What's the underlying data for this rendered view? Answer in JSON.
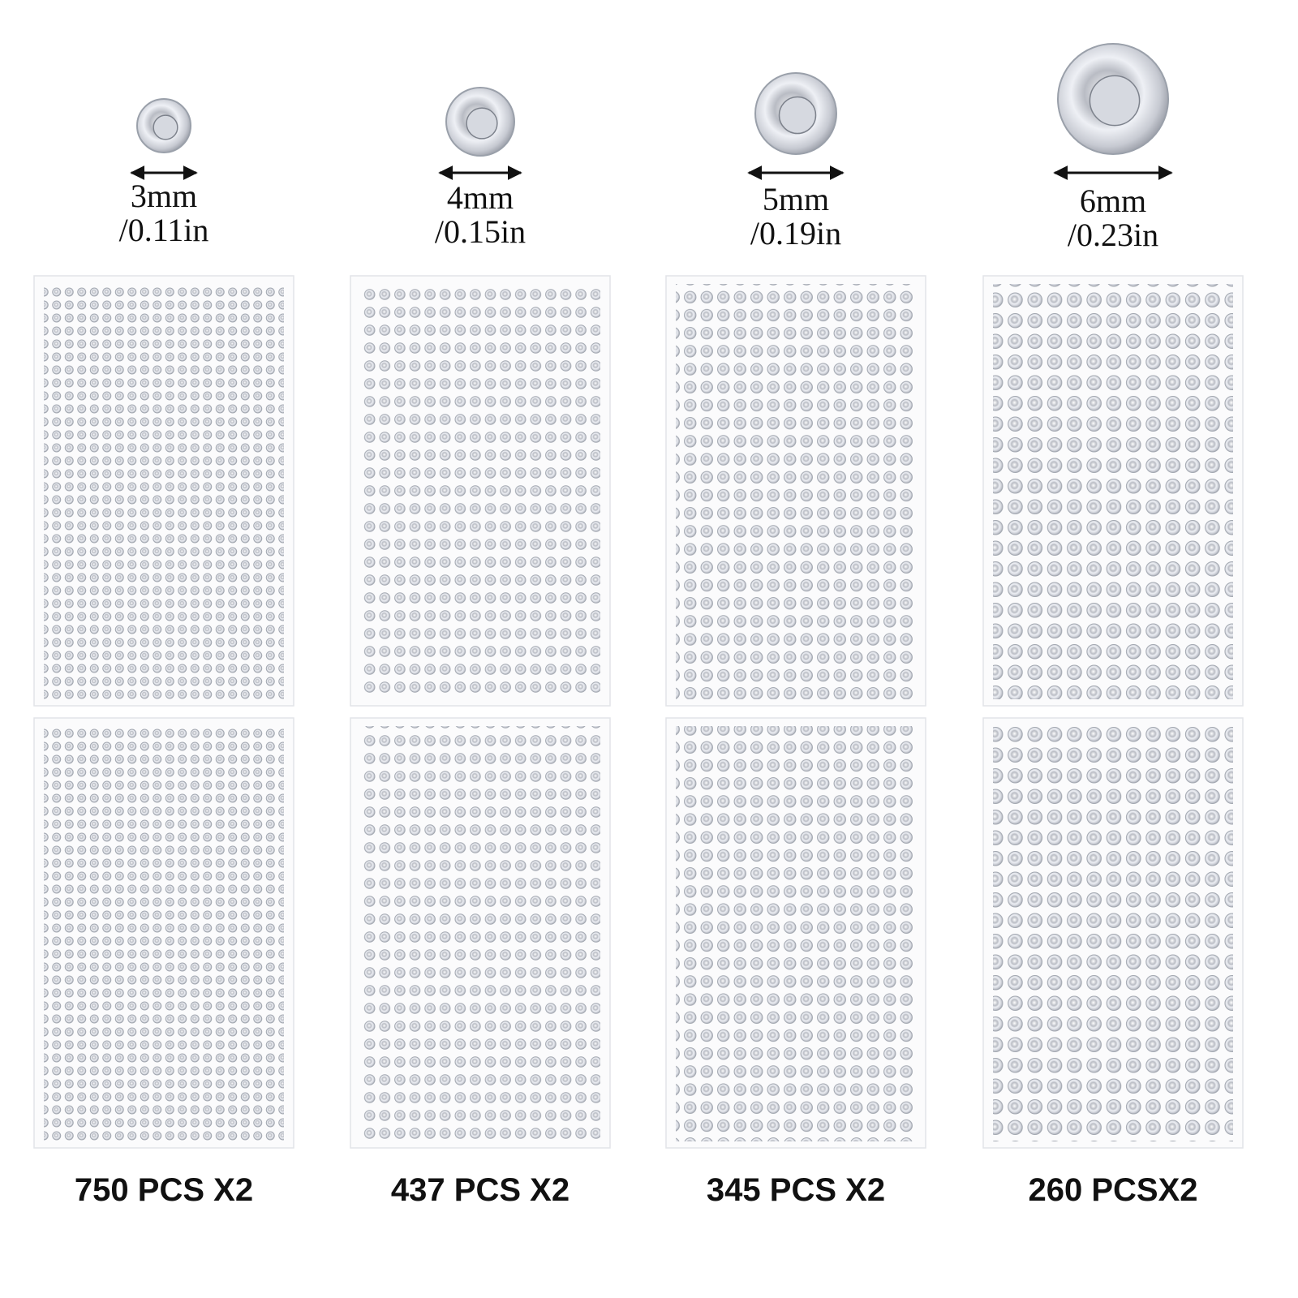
{
  "columns": [
    {
      "size": "3mm",
      "inch": "/0.11in",
      "count": "750 PCS X2"
    },
    {
      "size": "4mm",
      "inch": "/0.15in",
      "count": "437 PCS X2"
    },
    {
      "size": "5mm",
      "inch": "/0.19in",
      "count": "345 PCS X2"
    },
    {
      "size": "6mm",
      "inch": "/0.23in",
      "count": "260 PCSX2"
    }
  ]
}
